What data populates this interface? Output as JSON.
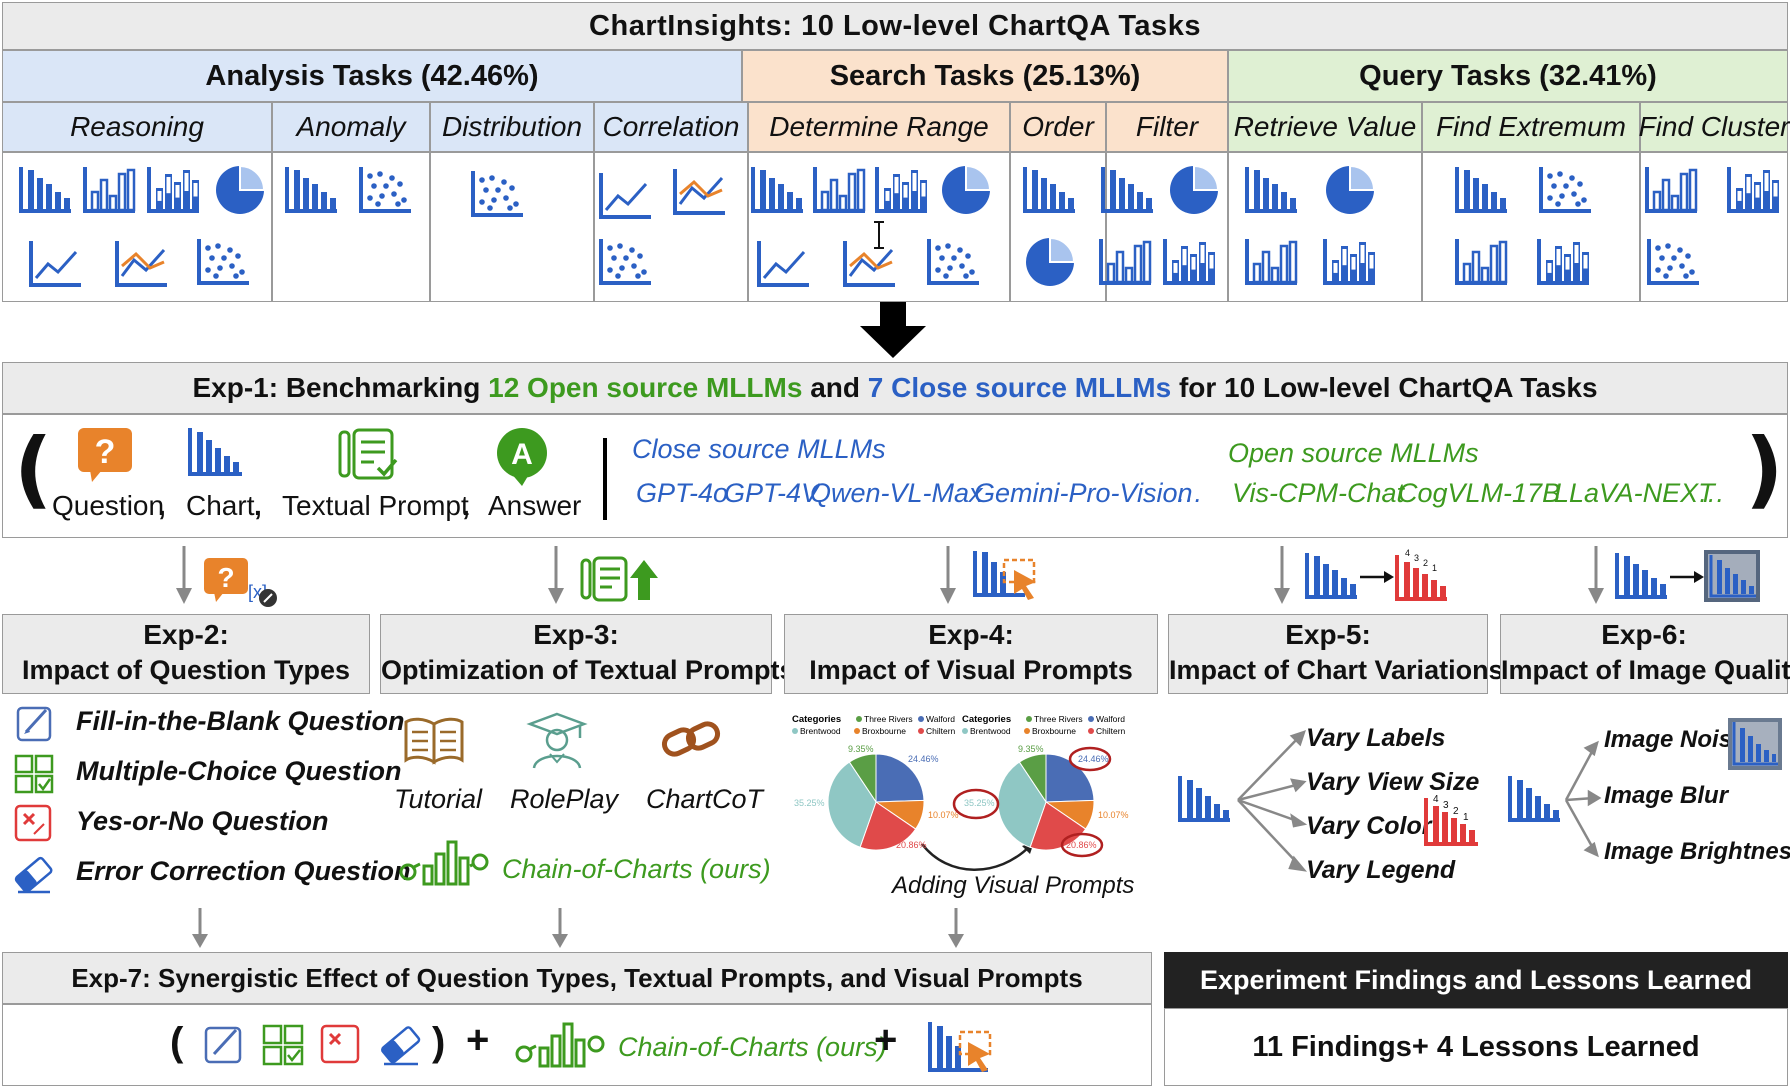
{
  "header": {
    "title": "ChartInsights: 10 Low-level ChartQA Tasks",
    "groups": [
      {
        "label": "Analysis Tasks (42.46%)",
        "color": "#dae6f7"
      },
      {
        "label": "Search Tasks (25.13%)",
        "color": "#fbe2cc"
      },
      {
        "label": "Query Tasks (32.41%)",
        "color": "#dff0d3"
      }
    ],
    "tasks": [
      "Reasoning",
      "Anomaly",
      "Distribution",
      "Correlation",
      "Determine Range",
      "Order",
      "Filter",
      "Retrieve Value",
      "Find Extremum",
      "Find Cluster"
    ]
  },
  "exp1": {
    "title_prefix": "Exp-1: Benchmarking ",
    "open_count": "12 Open source MLLMs",
    "and": " and ",
    "close_count": "7 Close source MLLMs",
    "title_suffix": " for 10 Low-level ChartQA Tasks",
    "paren_open": "(",
    "paren_close": ")",
    "inputs": [
      "Question",
      ",",
      "Chart",
      ",",
      "Textual Prompt",
      ",",
      "Answer"
    ],
    "close_label": "Close source MLLMs",
    "close_models": [
      "GPT-4o",
      "GPT-4V",
      "Qwen-VL-Max",
      "Gemini-Pro-Vision",
      "…"
    ],
    "open_label": "Open source MLLMs",
    "open_models": [
      "Vis-CPM-Chat",
      "CogVLM-17B",
      "LLaVA-NEXT",
      "…"
    ]
  },
  "exps": [
    {
      "id": "Exp-2:",
      "title": "Impact of Question Types"
    },
    {
      "id": "Exp-3:",
      "title": "Optimization of Textual Prompts"
    },
    {
      "id": "Exp-4:",
      "title": "Impact of Visual Prompts"
    },
    {
      "id": "Exp-5:",
      "title": "Impact of Chart Variations"
    },
    {
      "id": "Exp-6:",
      "title": "Impact of Image Quality"
    }
  ],
  "exp2": {
    "items": [
      "Fill-in-the-Blank Question",
      "Multiple-Choice Question",
      "Yes-or-No Question",
      "Error Correction Question"
    ]
  },
  "exp3": {
    "items": [
      "Tutorial",
      "RolePlay",
      "ChartCoT"
    ],
    "coc": "Chain-of-Charts (ours)"
  },
  "exp4": {
    "legend_title": "Categories",
    "legend": [
      "Three Rivers",
      "Walford",
      "Brentwood",
      "Broxbourne",
      "Chiltern"
    ],
    "pcts": [
      "9.35%",
      "24.46%",
      "35.25%",
      "10.07%",
      "20.86%"
    ],
    "caption": "Adding Visual Prompts"
  },
  "exp5": {
    "items": [
      "Vary Labels",
      "Vary View Size",
      "Vary Color",
      "Vary Legend"
    ],
    "ranks": [
      "4",
      "3",
      "2",
      "1"
    ]
  },
  "exp6": {
    "items": [
      "Image Noise",
      "Image Blur",
      "Image Brightness"
    ]
  },
  "exp7": {
    "title": "Exp-7: Synergistic Effect of Question Types, Textual Prompts, and Visual Prompts",
    "paren_open": "(",
    "paren_close": ")",
    "plus": "+",
    "coc": "Chain-of-Charts (ours)"
  },
  "findings": {
    "title": "Experiment Findings and Lessons Learned",
    "text": "11 Findings+ 4 Lessons Learned"
  },
  "colors": {
    "chart_blue": "#2b60c4",
    "orange": "#e8832b",
    "green": "#3d9a1f",
    "red": "#e03a3a"
  },
  "pie_colors": [
    "#5a9e45",
    "#4a6db5",
    "#e8832b",
    "#e04a4a",
    "#8fc7c4"
  ]
}
